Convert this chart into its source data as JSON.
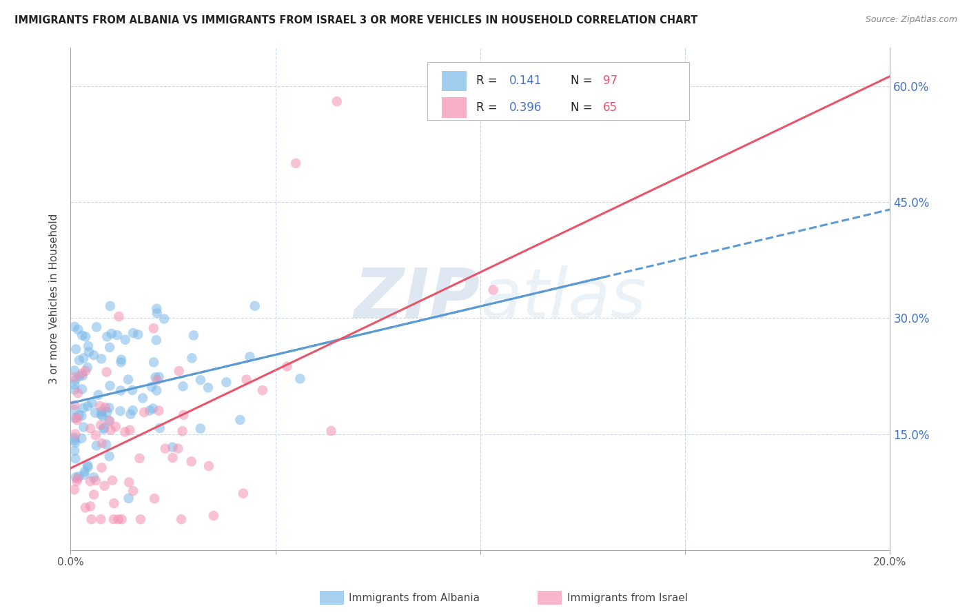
{
  "title": "IMMIGRANTS FROM ALBANIA VS IMMIGRANTS FROM ISRAEL 3 OR MORE VEHICLES IN HOUSEHOLD CORRELATION CHART",
  "source": "Source: ZipAtlas.com",
  "ylabel": "3 or more Vehicles in Household",
  "xlim": [
    0.0,
    0.2
  ],
  "ylim": [
    0.0,
    0.65
  ],
  "albania_color": "#7ab8e8",
  "israel_color": "#f48fb1",
  "albania_line_color": "#5b9bd5",
  "israel_line_color": "#e8546a",
  "albania_R": 0.141,
  "albania_N": 97,
  "israel_R": 0.396,
  "israel_N": 65,
  "watermark_zip": "ZIP",
  "watermark_atlas": "atlas",
  "legend_label_albania": "Immigrants from Albania",
  "legend_label_israel": "Immigrants from Israel",
  "r_n_color": "#4472c4",
  "r_val_color": "#4472c4",
  "n_val_color": "#e8546a"
}
